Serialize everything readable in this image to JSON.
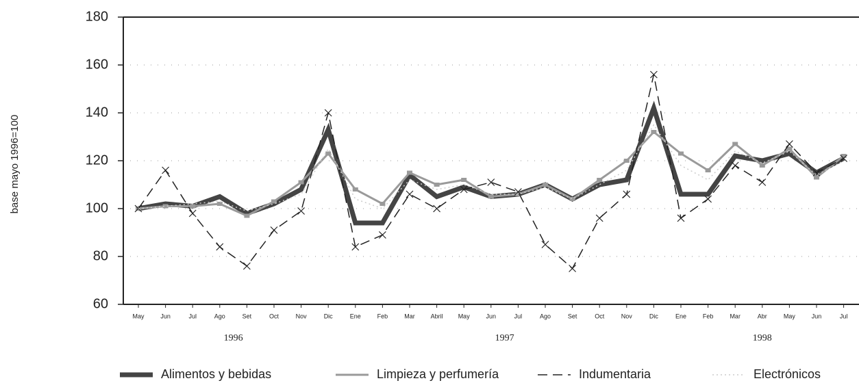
{
  "chart_data": {
    "type": "line",
    "y_label": "base mayo 1996=100",
    "categories": [
      "May",
      "Jun",
      "Jul",
      "Ago",
      "Set",
      "Oct",
      "Nov",
      "Dic",
      "Ene",
      "Feb",
      "Mar",
      "Abril",
      "May",
      "Jun",
      "Jul",
      "Ago",
      "Set",
      "Oct",
      "Nov",
      "Dic",
      "Ene",
      "Feb",
      "Mar",
      "Abr",
      "May",
      "Jun",
      "Jul"
    ],
    "years": [
      {
        "label": "1996",
        "months": 8
      },
      {
        "label": "1997",
        "months": 12
      },
      {
        "label": "1998",
        "months": 7
      }
    ],
    "ylim": [
      60,
      180
    ],
    "yticks": [
      60,
      80,
      100,
      120,
      140,
      160,
      180
    ],
    "grid": true,
    "series": [
      {
        "name": "Alimentos y bebidas",
        "color": "#444444",
        "values": [
          100,
          102,
          101,
          105,
          98,
          102,
          108,
          133,
          94,
          94,
          114,
          105,
          109,
          105,
          106,
          110,
          104,
          110,
          112,
          142,
          106,
          106,
          122,
          120,
          123,
          115,
          121
        ]
      },
      {
        "name": "Limpieza y perfumería",
        "color": "#9a9a9a",
        "values": [
          100,
          101,
          101,
          102,
          97,
          103,
          111,
          123,
          108,
          102,
          115,
          110,
          112,
          105,
          106,
          110,
          104,
          112,
          120,
          132,
          123,
          116,
          127,
          118,
          125,
          113,
          122
        ]
      },
      {
        "name": "Indumentaria",
        "color": "#222222",
        "values": [
          100,
          116,
          98,
          84,
          76,
          91,
          99,
          140,
          84,
          89,
          106,
          100,
          108,
          111,
          107,
          85,
          75,
          96,
          106,
          156,
          96,
          104,
          118,
          111,
          127,
          115,
          121
        ]
      },
      {
        "name": "Electrónicos",
        "color": "#cccccc",
        "values": [
          100,
          101,
          102,
          103,
          99,
          102,
          106,
          125,
          104,
          100,
          112,
          108,
          110,
          106,
          106,
          109,
          104,
          110,
          116,
          135,
          118,
          112,
          124,
          119,
          124,
          114,
          120
        ]
      }
    ]
  }
}
